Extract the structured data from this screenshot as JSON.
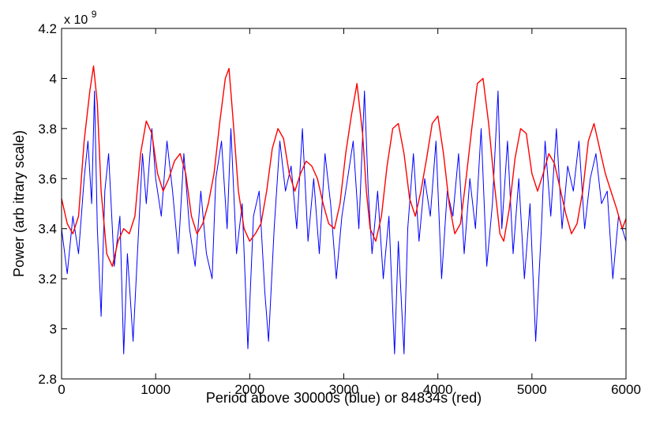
{
  "chart_data": {
    "type": "line",
    "xlabel": "Period above 30000s (blue) or  84834s (red)",
    "ylabel": "Power (arb itrary scale)",
    "xlim": [
      0,
      6000
    ],
    "ylim": [
      2800000000.0,
      4200000000.0
    ],
    "xticks": [
      0,
      1000,
      2000,
      3000,
      4000,
      5000,
      6000
    ],
    "xtick_labels": [
      "0",
      "1000",
      "2000",
      "3000",
      "4000",
      "5000",
      "6000"
    ],
    "yticks": [
      2.8,
      3.0,
      3.2,
      3.4,
      3.6,
      3.8,
      4.0,
      4.2
    ],
    "ytick_labels": [
      "2.8",
      "3",
      "3.2",
      "3.4",
      "3.6",
      "3.8",
      "4",
      "4.2"
    ],
    "y_multiplier_label": "x 10",
    "y_multiplier_exponent": "9",
    "grid": false,
    "legend": "none",
    "series": [
      {
        "color": "#0000ff",
        "x": [
          0,
          60,
          120,
          180,
          240,
          280,
          320,
          350,
          380,
          420,
          460,
          500,
          560,
          620,
          660,
          700,
          760,
          800,
          860,
          900,
          960,
          1000,
          1060,
          1120,
          1180,
          1240,
          1300,
          1360,
          1420,
          1480,
          1540,
          1600,
          1640,
          1700,
          1760,
          1800,
          1860,
          1920,
          1980,
          2040,
          2100,
          2160,
          2200,
          2260,
          2320,
          2380,
          2440,
          2500,
          2560,
          2620,
          2680,
          2740,
          2800,
          2860,
          2920,
          2980,
          3040,
          3100,
          3160,
          3220,
          3260,
          3300,
          3360,
          3420,
          3480,
          3540,
          3580,
          3640,
          3680,
          3740,
          3800,
          3860,
          3920,
          3980,
          4040,
          4100,
          4160,
          4220,
          4280,
          4340,
          4400,
          4460,
          4520,
          4580,
          4640,
          4680,
          4740,
          4800,
          4860,
          4920,
          4980,
          5040,
          5100,
          5140,
          5200,
          5260,
          5320,
          5380,
          5440,
          5500,
          5560,
          5620,
          5680,
          5740,
          5800,
          5860,
          5920,
          6000
        ],
        "y": [
          3.4,
          3.22,
          3.45,
          3.3,
          3.6,
          3.75,
          3.5,
          3.95,
          3.4,
          3.05,
          3.55,
          3.7,
          3.25,
          3.45,
          2.9,
          3.3,
          2.95,
          3.25,
          3.7,
          3.5,
          3.8,
          3.6,
          3.45,
          3.75,
          3.55,
          3.3,
          3.7,
          3.4,
          3.25,
          3.55,
          3.3,
          3.2,
          3.6,
          3.75,
          3.4,
          3.8,
          3.3,
          3.5,
          2.92,
          3.45,
          3.55,
          3.15,
          2.95,
          3.4,
          3.75,
          3.55,
          3.65,
          3.4,
          3.8,
          3.35,
          3.6,
          3.3,
          3.7,
          3.5,
          3.2,
          3.45,
          3.6,
          3.75,
          3.4,
          3.95,
          3.55,
          3.3,
          3.55,
          3.2,
          3.45,
          2.9,
          3.35,
          2.9,
          3.4,
          3.7,
          3.35,
          3.6,
          3.45,
          3.75,
          3.2,
          3.55,
          3.45,
          3.7,
          3.3,
          3.6,
          3.4,
          3.8,
          3.25,
          3.5,
          3.95,
          3.4,
          3.75,
          3.3,
          3.6,
          3.2,
          3.5,
          2.95,
          3.4,
          3.75,
          3.45,
          3.8,
          3.4,
          3.65,
          3.55,
          3.75,
          3.4,
          3.6,
          3.7,
          3.5,
          3.55,
          3.2,
          3.45,
          3.35
        ]
      },
      {
        "color": "#ff0000",
        "x": [
          0,
          60,
          120,
          180,
          240,
          300,
          340,
          380,
          420,
          480,
          540,
          600,
          660,
          720,
          780,
          840,
          900,
          960,
          1020,
          1080,
          1140,
          1200,
          1260,
          1320,
          1380,
          1440,
          1500,
          1560,
          1620,
          1680,
          1740,
          1780,
          1820,
          1880,
          1940,
          2000,
          2060,
          2120,
          2180,
          2240,
          2300,
          2360,
          2420,
          2480,
          2540,
          2600,
          2660,
          2720,
          2780,
          2840,
          2900,
          2960,
          3020,
          3080,
          3140,
          3200,
          3240,
          3280,
          3340,
          3400,
          3460,
          3520,
          3580,
          3640,
          3700,
          3760,
          3820,
          3880,
          3940,
          4000,
          4060,
          4120,
          4180,
          4240,
          4300,
          4360,
          4420,
          4480,
          4540,
          4600,
          4660,
          4700,
          4760,
          4820,
          4880,
          4940,
          5000,
          5060,
          5120,
          5180,
          5240,
          5300,
          5360,
          5420,
          5480,
          5540,
          5600,
          5660,
          5720,
          5780,
          5840,
          5900,
          5960,
          6000
        ],
        "y": [
          3.52,
          3.42,
          3.38,
          3.45,
          3.75,
          3.95,
          4.05,
          3.9,
          3.55,
          3.3,
          3.25,
          3.35,
          3.4,
          3.38,
          3.45,
          3.7,
          3.83,
          3.78,
          3.62,
          3.55,
          3.6,
          3.67,
          3.7,
          3.62,
          3.45,
          3.38,
          3.42,
          3.5,
          3.62,
          3.82,
          4.0,
          4.04,
          3.85,
          3.55,
          3.4,
          3.35,
          3.38,
          3.42,
          3.55,
          3.72,
          3.8,
          3.76,
          3.62,
          3.55,
          3.62,
          3.67,
          3.65,
          3.6,
          3.5,
          3.42,
          3.4,
          3.5,
          3.7,
          3.85,
          3.98,
          3.78,
          3.55,
          3.4,
          3.35,
          3.45,
          3.65,
          3.8,
          3.82,
          3.7,
          3.52,
          3.45,
          3.55,
          3.68,
          3.82,
          3.85,
          3.7,
          3.5,
          3.38,
          3.42,
          3.6,
          3.8,
          3.98,
          4.0,
          3.82,
          3.58,
          3.38,
          3.35,
          3.48,
          3.68,
          3.8,
          3.78,
          3.62,
          3.55,
          3.62,
          3.7,
          3.66,
          3.56,
          3.46,
          3.38,
          3.42,
          3.55,
          3.75,
          3.82,
          3.72,
          3.62,
          3.55,
          3.48,
          3.4,
          3.44
        ]
      }
    ]
  }
}
